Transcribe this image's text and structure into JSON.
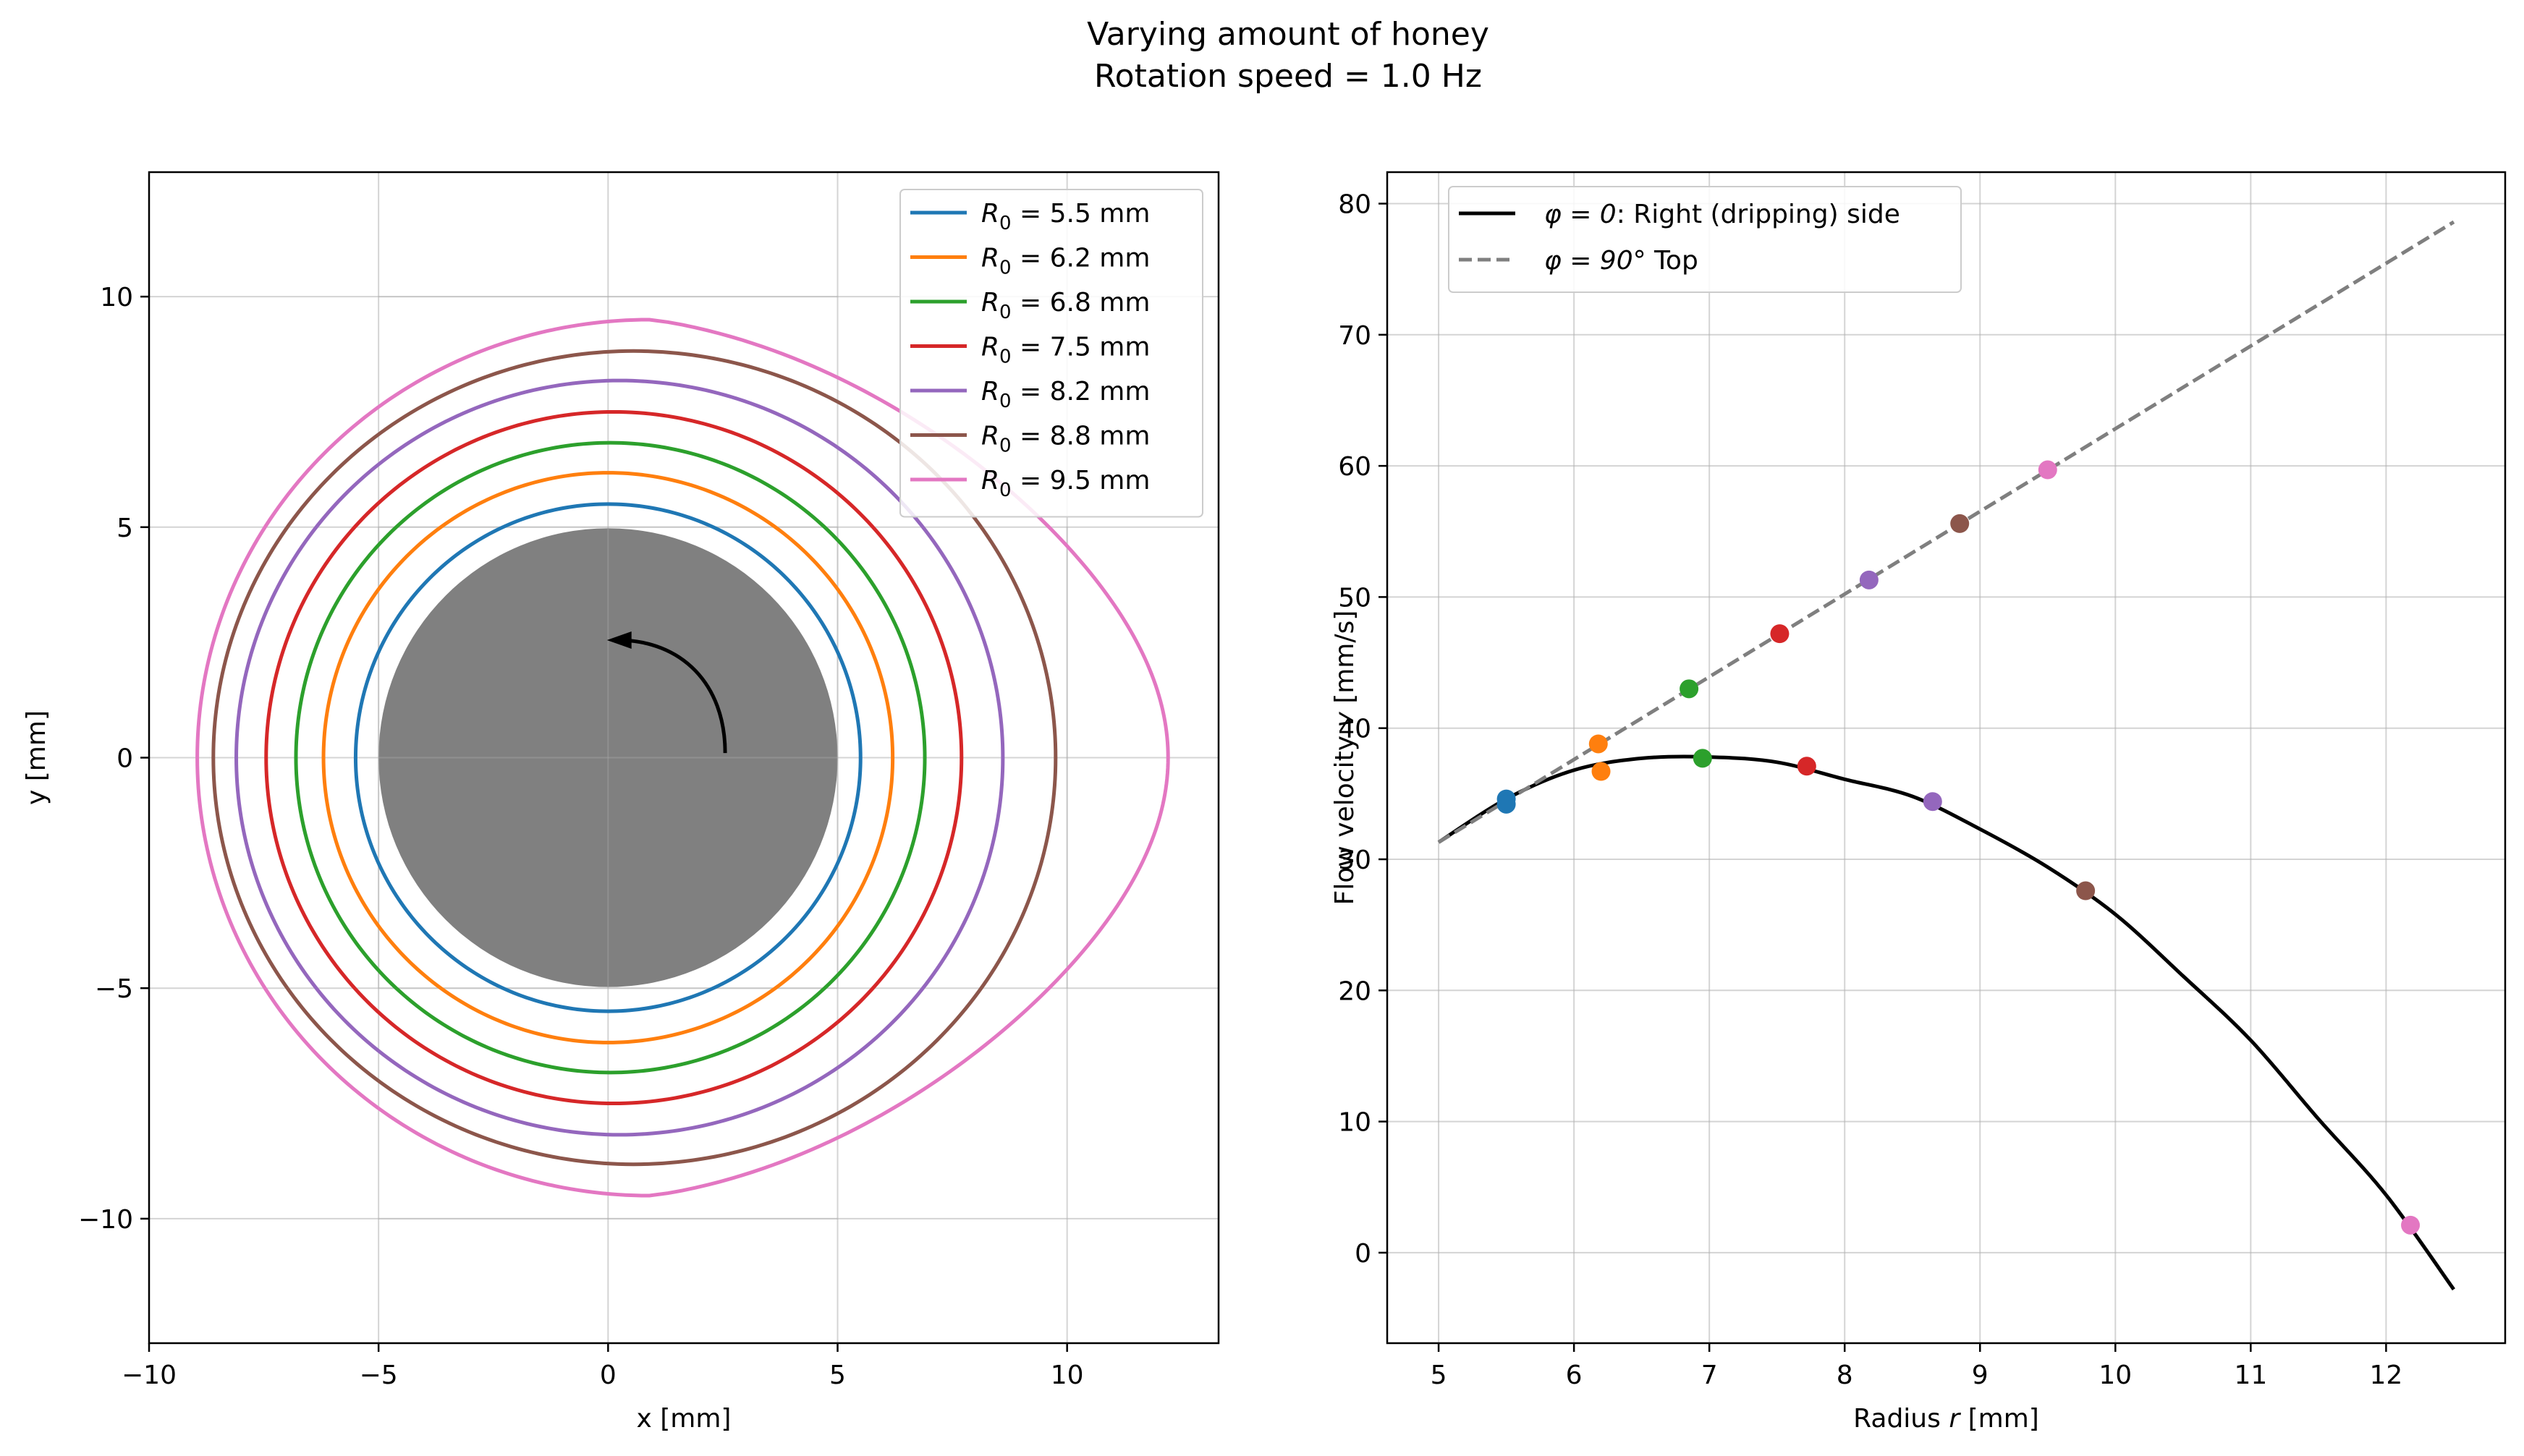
{
  "figure": {
    "title_line1": "Varying amount of honey",
    "title_line2": "Rotation speed = 1.0 Hz"
  },
  "chart_data": [
    {
      "type": "line",
      "subplot": "left",
      "xlabel": "x [mm]",
      "ylabel": "y [mm]",
      "xlim": [
        -10,
        13.3
      ],
      "ylim": [
        -12.7,
        12.7
      ],
      "xticks": [
        "−10",
        "−5",
        "0",
        "5",
        "10"
      ],
      "xtick_values": [
        -10,
        -5,
        0,
        5,
        10
      ],
      "yticks": [
        "−10",
        "−5",
        "0",
        "5",
        "10"
      ],
      "ytick_values": [
        -10,
        -5,
        0,
        5,
        10
      ],
      "grid": true,
      "legend_placement": "top-right",
      "cylinder": {
        "radius": 5,
        "color": "#808080"
      },
      "rotation_arrow": "counter-clockwise",
      "series": [
        {
          "label": "R0 = 5.5 mm",
          "legend_var": "R",
          "legend_sub": "0",
          "legend_rest": " = 5.5 mm",
          "color": "#1f77b4",
          "left": -5.5,
          "right": 5.5,
          "top": 5.5,
          "bottom": -5.5,
          "shift": 0.0
        },
        {
          "label": "R0 = 6.2 mm",
          "legend_var": "R",
          "legend_sub": "0",
          "legend_rest": " = 6.2 mm",
          "color": "#ff7f0e",
          "left": -6.2,
          "right": 6.2,
          "top": 6.18,
          "bottom": -6.18,
          "shift": 0.0
        },
        {
          "label": "R0 = 6.8 mm",
          "legend_var": "R",
          "legend_sub": "0",
          "legend_rest": " = 6.8 mm",
          "color": "#2ca02c",
          "left": -6.8,
          "right": 6.9,
          "top": 6.83,
          "bottom": -6.83,
          "shift": 0.05
        },
        {
          "label": "R0 = 7.5 mm",
          "legend_var": "R",
          "legend_sub": "0",
          "legend_rest": " = 7.5 mm",
          "color": "#d62728",
          "left": -7.45,
          "right": 7.7,
          "top": 7.5,
          "bottom": -7.5,
          "shift": 0.12
        },
        {
          "label": "R0 = 8.2 mm",
          "legend_var": "R",
          "legend_sub": "0",
          "legend_rest": " = 8.2 mm",
          "color": "#9467bd",
          "left": -8.1,
          "right": 8.6,
          "top": 8.18,
          "bottom": -8.18,
          "shift": 0.25
        },
        {
          "label": "R0 = 8.8 mm",
          "legend_var": "R",
          "legend_sub": "0",
          "legend_rest": " = 8.8 mm",
          "color": "#8c564b",
          "left": -8.6,
          "right": 9.75,
          "top": 8.82,
          "bottom": -8.82,
          "shift": 0.55
        },
        {
          "label": "R0 = 9.5 mm",
          "legend_var": "R",
          "legend_sub": "0",
          "legend_rest": " = 9.5 mm",
          "color": "#e377c2",
          "left": -8.95,
          "right": 12.2,
          "top": 9.5,
          "bottom": -9.5,
          "shift": 0.9,
          "pointed": true
        }
      ]
    },
    {
      "type": "line",
      "subplot": "right",
      "xlabel_pre": "Radius ",
      "xlabel_var": "r",
      "xlabel_post": " [mm]",
      "ylabel_pre": "Flow velocity ",
      "ylabel_var": "v",
      "ylabel_post": " [mm/s]",
      "xlim": [
        4.62,
        12.88
      ],
      "ylim": [
        -6.9,
        82.4
      ],
      "xticks": [
        "5",
        "6",
        "7",
        "8",
        "9",
        "10",
        "11",
        "12"
      ],
      "xtick_values": [
        5,
        6,
        7,
        8,
        9,
        10,
        11,
        12
      ],
      "yticks": [
        "0",
        "10",
        "20",
        "30",
        "40",
        "50",
        "60",
        "70",
        "80"
      ],
      "ytick_values": [
        0,
        10,
        20,
        30,
        40,
        50,
        60,
        70,
        80
      ],
      "grid": true,
      "legend_placement": "top-left",
      "series": [
        {
          "name_pre": "φ = 0",
          "name_post": ": Right (dripping) side",
          "color": "#000000",
          "dash": "solid",
          "x": [
            5.0,
            5.5,
            6.0,
            6.5,
            7.0,
            7.5,
            8.0,
            8.5,
            9.0,
            9.5,
            10.0,
            10.5,
            11.0,
            11.5,
            12.0,
            12.5
          ],
          "y": [
            31.3,
            34.6,
            36.8,
            37.7,
            37.8,
            37.4,
            36.1,
            34.8,
            32.3,
            29.4,
            25.8,
            21.1,
            16.2,
            10.2,
            4.4,
            -2.8
          ]
        },
        {
          "name_pre": "φ = 90°",
          "name_post": " Top",
          "color": "#7f7f7f",
          "dash": "dashed",
          "x": [
            5.0,
            12.5
          ],
          "y": [
            31.3,
            78.6
          ]
        }
      ],
      "markers": [
        {
          "x": 5.5,
          "y": 34.6,
          "color": "#1f77b4"
        },
        {
          "x": 5.5,
          "y": 34.2,
          "color": "#1f77b4"
        },
        {
          "x": 6.18,
          "y": 38.8,
          "color": "#ff7f0e"
        },
        {
          "x": 6.2,
          "y": 36.7,
          "color": "#ff7f0e"
        },
        {
          "x": 6.85,
          "y": 43.0,
          "color": "#2ca02c"
        },
        {
          "x": 6.95,
          "y": 37.7,
          "color": "#2ca02c"
        },
        {
          "x": 7.52,
          "y": 47.2,
          "color": "#d62728"
        },
        {
          "x": 7.72,
          "y": 37.1,
          "color": "#d62728"
        },
        {
          "x": 8.18,
          "y": 51.3,
          "color": "#9467bd"
        },
        {
          "x": 8.65,
          "y": 34.4,
          "color": "#9467bd"
        },
        {
          "x": 8.85,
          "y": 55.6,
          "color": "#8c564b"
        },
        {
          "x": 9.78,
          "y": 27.6,
          "color": "#8c564b"
        },
        {
          "x": 9.5,
          "y": 59.7,
          "color": "#e377c2"
        },
        {
          "x": 12.18,
          "y": 2.1,
          "color": "#e377c2"
        }
      ]
    }
  ]
}
